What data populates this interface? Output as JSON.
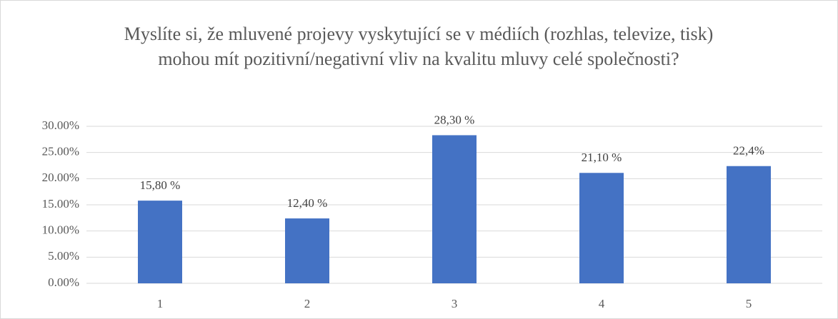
{
  "chart_data": {
    "type": "bar",
    "title": "Myslíte si, že mluvené projevy vyskytující se v médiích (rozhlas, televize, tisk) mohou mít pozitivní/negativní vliv na kvalitu mluvy celé společnosti?",
    "categories": [
      "1",
      "2",
      "3",
      "4",
      "5"
    ],
    "values": [
      15.8,
      12.4,
      28.3,
      21.1,
      22.4
    ],
    "value_labels": [
      "15,80 %",
      "12,40 %",
      "28,30 %",
      "21,10 %",
      "22,4%"
    ],
    "color": "#4472c4",
    "ylim": [
      0,
      30
    ],
    "yticks": [
      {
        "value": 0,
        "label": "0.00%"
      },
      {
        "value": 5,
        "label": "5.00%"
      },
      {
        "value": 10,
        "label": "10.00%"
      },
      {
        "value": 15,
        "label": "15.00%"
      },
      {
        "value": 20,
        "label": "20.00%"
      },
      {
        "value": 25,
        "label": "25.00%"
      },
      {
        "value": 30,
        "label": "30.00%"
      }
    ],
    "grid": true
  }
}
